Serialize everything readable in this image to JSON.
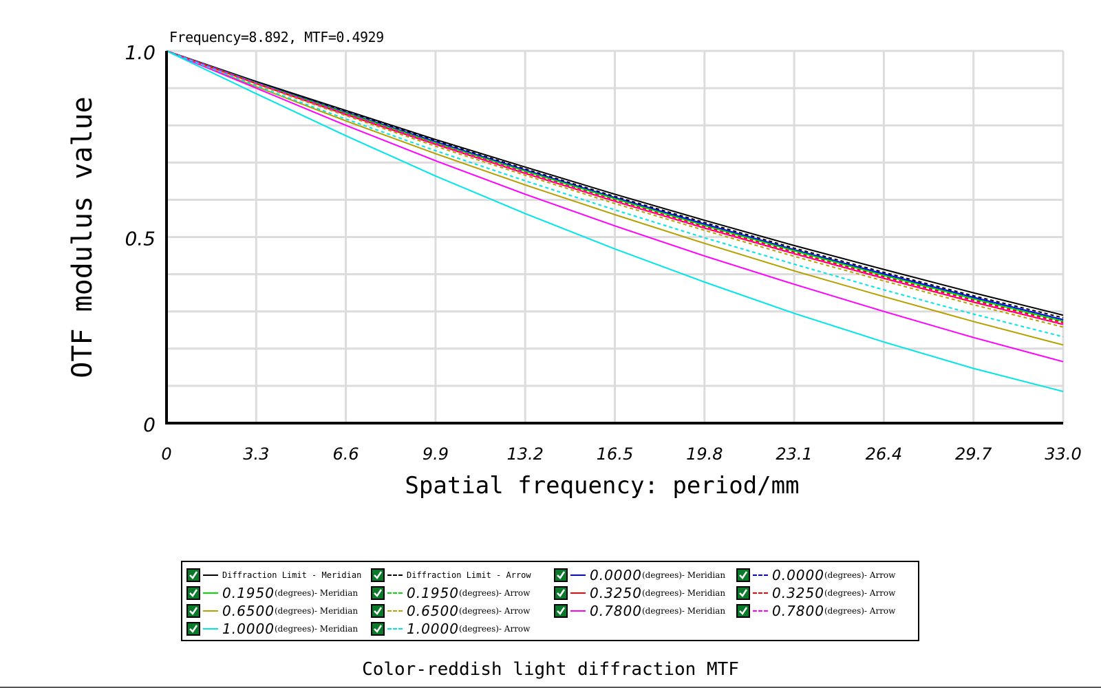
{
  "readout": "Frequency=8.892, MTF=0.4929",
  "caption": "Color-reddish light diffraction MTF",
  "chart_data": {
    "type": "line",
    "title": "",
    "xlabel": "Spatial frequency: period/mm",
    "ylabel": "OTF modulus value",
    "xlim": [
      0,
      33
    ],
    "ylim": [
      0,
      1
    ],
    "grid": true,
    "legend": "bottom",
    "x_ticks": [
      "0",
      "3.3",
      "6.6",
      "9.9",
      "13.2",
      "16.5",
      "19.8",
      "23.1",
      "26.4",
      "29.7",
      "33.0"
    ],
    "y_ticks": [
      "0",
      "0.5",
      "1.0"
    ],
    "x": [
      0,
      3.3,
      6.6,
      9.9,
      13.2,
      16.5,
      19.8,
      23.1,
      26.4,
      29.7,
      33.0
    ],
    "series": [
      {
        "name": "Diffraction Limit - Meridian",
        "value": "",
        "unit": "",
        "color": "#000000",
        "dash": "solid",
        "values": [
          1.0,
          0.918,
          0.84,
          0.762,
          0.688,
          0.615,
          0.545,
          0.477,
          0.413,
          0.35,
          0.29
        ]
      },
      {
        "name": "Diffraction Limit - Arrow",
        "value": "",
        "unit": "",
        "color": "#000000",
        "dash": "dashed",
        "values": [
          1.0,
          0.916,
          0.837,
          0.758,
          0.683,
          0.609,
          0.539,
          0.47,
          0.405,
          0.342,
          0.283
        ]
      },
      {
        "name": "- Meridian",
        "value": "0.0000",
        "unit": "(degrees)",
        "color": "#0000ff",
        "dash": "solid",
        "values": [
          1.0,
          0.915,
          0.835,
          0.756,
          0.68,
          0.606,
          0.535,
          0.466,
          0.401,
          0.338,
          0.278
        ]
      },
      {
        "name": "- Arrow",
        "value": "0.0000",
        "unit": "(degrees)",
        "color": "#0000ff",
        "dash": "dashed",
        "values": [
          1.0,
          0.915,
          0.834,
          0.755,
          0.679,
          0.605,
          0.534,
          0.465,
          0.4,
          0.337,
          0.277
        ]
      },
      {
        "name": "- Meridian",
        "value": "0.1950",
        "unit": "(degrees)",
        "color": "#00dd00",
        "dash": "solid",
        "values": [
          1.0,
          0.914,
          0.833,
          0.753,
          0.677,
          0.603,
          0.531,
          0.463,
          0.397,
          0.334,
          0.274
        ]
      },
      {
        "name": "- Arrow",
        "value": "0.1950",
        "unit": "(degrees)",
        "color": "#00dd00",
        "dash": "dashed",
        "values": [
          1.0,
          0.914,
          0.832,
          0.752,
          0.676,
          0.601,
          0.53,
          0.461,
          0.396,
          0.332,
          0.272
        ]
      },
      {
        "name": "- Meridian",
        "value": "0.3250",
        "unit": "(degrees)",
        "color": "#ff0000",
        "dash": "solid",
        "values": [
          1.0,
          0.912,
          0.829,
          0.749,
          0.671,
          0.596,
          0.524,
          0.455,
          0.389,
          0.325,
          0.265
        ]
      },
      {
        "name": "- Arrow",
        "value": "0.3250",
        "unit": "(degrees)",
        "color": "#ff0000",
        "dash": "dashed",
        "values": [
          1.0,
          0.913,
          0.831,
          0.751,
          0.674,
          0.599,
          0.528,
          0.459,
          0.393,
          0.33,
          0.27
        ]
      },
      {
        "name": "- Meridian",
        "value": "0.6500",
        "unit": "(degrees)",
        "color": "#b5a000",
        "dash": "solid",
        "values": [
          1.0,
          0.904,
          0.812,
          0.724,
          0.64,
          0.56,
          0.483,
          0.409,
          0.34,
          0.273,
          0.21
        ]
      },
      {
        "name": "- Arrow",
        "value": "0.6500",
        "unit": "(degrees)",
        "color": "#b5a000",
        "dash": "dashed",
        "values": [
          1.0,
          0.91,
          0.826,
          0.744,
          0.666,
          0.59,
          0.518,
          0.448,
          0.382,
          0.318,
          0.258
        ]
      },
      {
        "name": "- Meridian",
        "value": "0.7800",
        "unit": "(degrees)",
        "color": "#ff00ff",
        "dash": "solid",
        "values": [
          1.0,
          0.9,
          0.8,
          0.705,
          0.615,
          0.53,
          0.449,
          0.373,
          0.3,
          0.23,
          0.165
        ]
      },
      {
        "name": "- Arrow",
        "value": "0.7800",
        "unit": "(degrees)",
        "color": "#ff00ff",
        "dash": "dashed",
        "values": [
          1.0,
          0.913,
          0.83,
          0.75,
          0.672,
          0.597,
          0.525,
          0.456,
          0.39,
          0.327,
          0.266
        ]
      },
      {
        "name": "- Meridian",
        "value": "1.0000",
        "unit": "(degrees)",
        "color": "#00e5e5",
        "dash": "solid",
        "values": [
          1.0,
          0.885,
          0.772,
          0.664,
          0.563,
          0.468,
          0.379,
          0.295,
          0.218,
          0.147,
          0.085
        ]
      },
      {
        "name": "- Arrow",
        "value": "1.0000",
        "unit": "(degrees)",
        "color": "#00e5e5",
        "dash": "dashed",
        "values": [
          1.0,
          0.906,
          0.817,
          0.732,
          0.651,
          0.573,
          0.498,
          0.427,
          0.358,
          0.293,
          0.232
        ]
      }
    ]
  },
  "legend_order": [
    0,
    1,
    2,
    3,
    4,
    5,
    6,
    7,
    8,
    9,
    10,
    11,
    12,
    13
  ]
}
